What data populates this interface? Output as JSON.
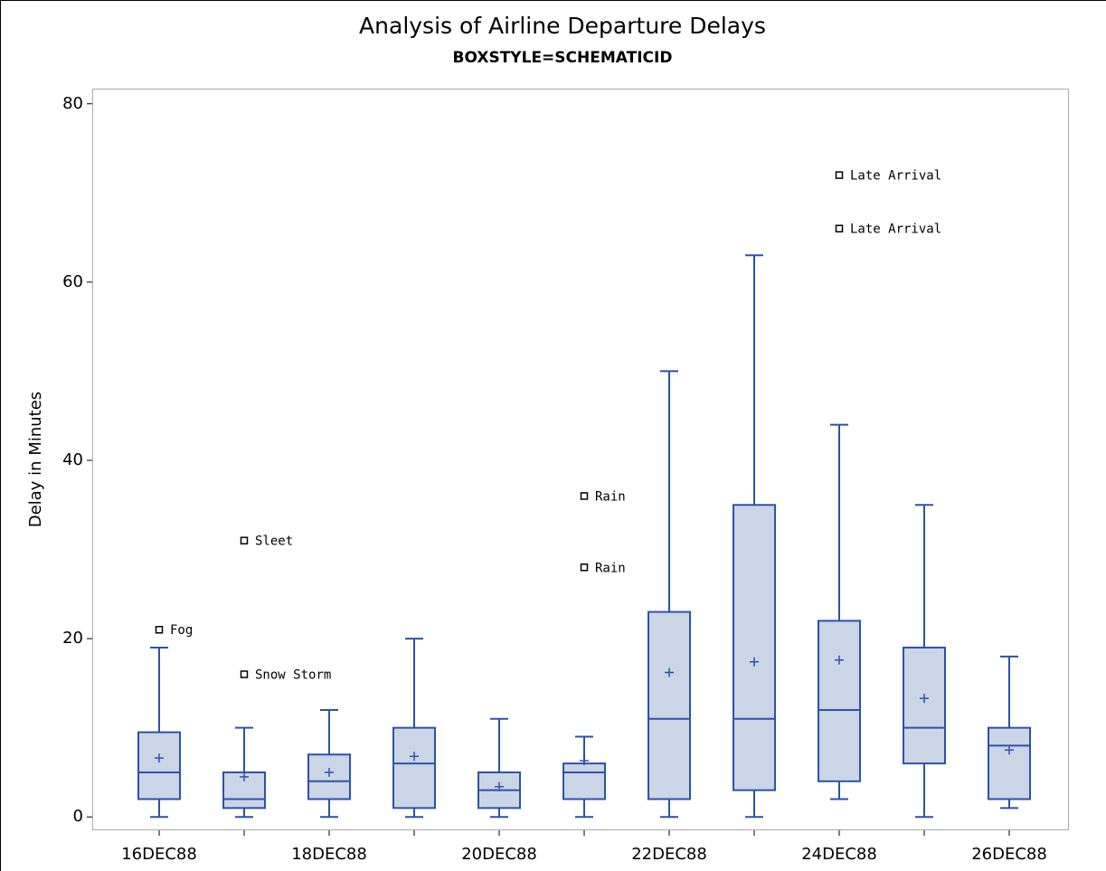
{
  "chart_data": {
    "type": "box",
    "title": "Analysis of Airline Departure Delays",
    "subtitle": "BOXSTYLE=SCHEMATICID",
    "y_label": "Delay in Minutes",
    "categories": [
      "16DEC88",
      null,
      "18DEC88",
      null,
      "20DEC88",
      null,
      "22DEC88",
      null,
      "24DEC88",
      null,
      "26DEC88"
    ],
    "boxes": [
      {
        "min": 0,
        "q1": 2,
        "median": 5,
        "q3": 9.5,
        "max": 19,
        "mean": 6.6,
        "outliers": [
          {
            "value": 21,
            "label": "Fog"
          }
        ]
      },
      {
        "min": 0,
        "q1": 1,
        "median": 2,
        "q3": 5,
        "max": 10,
        "mean": 4.5,
        "outliers": [
          {
            "value": 31,
            "label": "Sleet"
          },
          {
            "value": 16,
            "label": "Snow Storm"
          }
        ]
      },
      {
        "min": 0,
        "q1": 2,
        "median": 4,
        "q3": 7,
        "max": 12,
        "mean": 5,
        "outliers": []
      },
      {
        "min": 0,
        "q1": 1,
        "median": 6,
        "q3": 10,
        "max": 20,
        "mean": 6.8,
        "outliers": []
      },
      {
        "min": 0,
        "q1": 1,
        "median": 3,
        "q3": 5,
        "max": 11,
        "mean": 3.4,
        "outliers": []
      },
      {
        "min": 0,
        "q1": 2,
        "median": 5,
        "q3": 6,
        "max": 9,
        "mean": 6.3,
        "outliers": [
          {
            "value": 36,
            "label": "Rain"
          },
          {
            "value": 28,
            "label": "Rain"
          }
        ]
      },
      {
        "min": 0,
        "q1": 2,
        "median": 11,
        "q3": 23,
        "max": 50,
        "mean": 16.2,
        "outliers": []
      },
      {
        "min": 0,
        "q1": 3,
        "median": 11,
        "q3": 35,
        "max": 63,
        "mean": 17.4,
        "outliers": []
      },
      {
        "min": 2,
        "q1": 4,
        "median": 12,
        "q3": 22,
        "max": 44,
        "mean": 17.6,
        "outliers": [
          {
            "value": 72,
            "label": "Late Arrival"
          },
          {
            "value": 66,
            "label": "Late Arrival"
          }
        ]
      },
      {
        "min": 0,
        "q1": 6,
        "median": 10,
        "q3": 19,
        "max": 35,
        "mean": 13.3,
        "outliers": []
      },
      {
        "min": 1,
        "q1": 2,
        "median": 8,
        "q3": 10,
        "max": 18,
        "mean": 7.5,
        "outliers": []
      }
    ],
    "fill_color": "#cad5e6",
    "line_color": "#2d52a8",
    "ylim": [
      -1.5,
      81.7
    ],
    "yticks": [
      0,
      20,
      40,
      60,
      80
    ]
  }
}
